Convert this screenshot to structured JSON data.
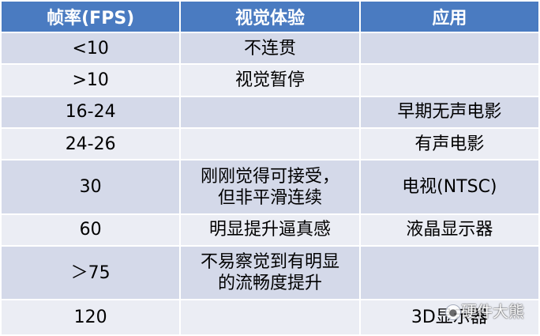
{
  "table": {
    "headers": [
      "帧率(FPS)",
      "视觉体验",
      "应用"
    ],
    "rows": [
      {
        "fps": "<10",
        "experience": "不连贯",
        "application": ""
      },
      {
        "fps": ">10",
        "experience": "视觉暂停",
        "application": ""
      },
      {
        "fps": "16-24",
        "experience": "",
        "application": "早期无声电影"
      },
      {
        "fps": "24-26",
        "experience": "",
        "application": "有声电影"
      },
      {
        "fps": "30",
        "experience_line1": "刚刚觉得可接受，",
        "experience_line2": "但非平滑连续",
        "application": "电视(NTSC)"
      },
      {
        "fps": "60",
        "experience": "明显提升逼真感",
        "application": "液晶显示器"
      },
      {
        "fps": "＞75",
        "experience_line1": "不易察觉到有明显",
        "experience_line2": "的流畅度提升",
        "application": ""
      },
      {
        "fps": "120",
        "experience": "",
        "application": "3D显示器"
      }
    ]
  },
  "watermark": {
    "icon": "wechat-icon",
    "text": "硬件大熊"
  }
}
